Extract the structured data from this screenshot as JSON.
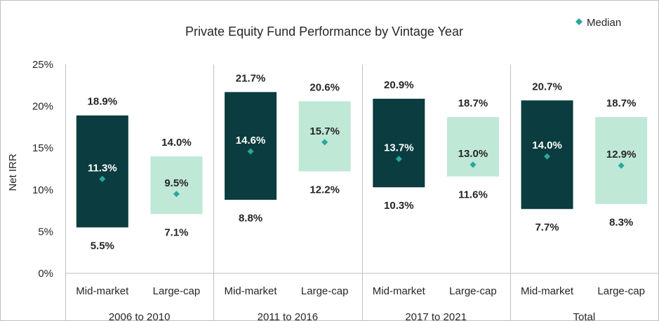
{
  "chart_data": {
    "type": "bar",
    "title": "Private Equity Fund Performance  by Vintage Year",
    "ylabel": "Net IRR",
    "xlabel": "",
    "ylim": [
      0,
      25
    ],
    "yticks": [
      "0%",
      "5%",
      "10%",
      "15%",
      "20%",
      "25%"
    ],
    "legend": {
      "label": "Median",
      "position": "top-right"
    },
    "groups": [
      "2006 to 2010",
      "2011 to 2016",
      "2017 to 2021",
      "Total"
    ],
    "categories": [
      "Mid-market",
      "Large-cap"
    ],
    "colors": {
      "Mid-market": "#0b3c3f",
      "Large-cap": "#bfe8d7",
      "median": "#2aa79b",
      "text_dark": "#262626",
      "text_light": "#ffffff"
    },
    "bars": [
      {
        "group": "2006 to 2010",
        "category": "Mid-market",
        "low": 5.5,
        "median": 11.3,
        "high": 18.9,
        "low_label": "5.5%",
        "median_label": "11.3%",
        "high_label": "18.9%"
      },
      {
        "group": "2006 to 2010",
        "category": "Large-cap",
        "low": 7.1,
        "median": 9.5,
        "high": 14.0,
        "low_label": "7.1%",
        "median_label": "9.5%",
        "high_label": "14.0%"
      },
      {
        "group": "2011 to 2016",
        "category": "Mid-market",
        "low": 8.8,
        "median": 14.6,
        "high": 21.7,
        "low_label": "8.8%",
        "median_label": "14.6%",
        "high_label": "21.7%"
      },
      {
        "group": "2011 to 2016",
        "category": "Large-cap",
        "low": 12.2,
        "median": 15.7,
        "high": 20.6,
        "low_label": "12.2%",
        "median_label": "15.7%",
        "high_label": "20.6%"
      },
      {
        "group": "2017 to 2021",
        "category": "Mid-market",
        "low": 10.3,
        "median": 13.7,
        "high": 20.9,
        "low_label": "10.3%",
        "median_label": "13.7%",
        "high_label": "20.9%"
      },
      {
        "group": "2017 to 2021",
        "category": "Large-cap",
        "low": 11.6,
        "median": 13.0,
        "high": 18.7,
        "low_label": "11.6%",
        "median_label": "13.0%",
        "high_label": "18.7%"
      },
      {
        "group": "Total",
        "category": "Mid-market",
        "low": 7.7,
        "median": 14.0,
        "high": 20.7,
        "low_label": "7.7%",
        "median_label": "14.0%",
        "high_label": "20.7%"
      },
      {
        "group": "Total",
        "category": "Large-cap",
        "low": 8.3,
        "median": 12.9,
        "high": 18.7,
        "low_label": "8.3%",
        "median_label": "12.9%",
        "high_label": "18.7%"
      }
    ]
  }
}
